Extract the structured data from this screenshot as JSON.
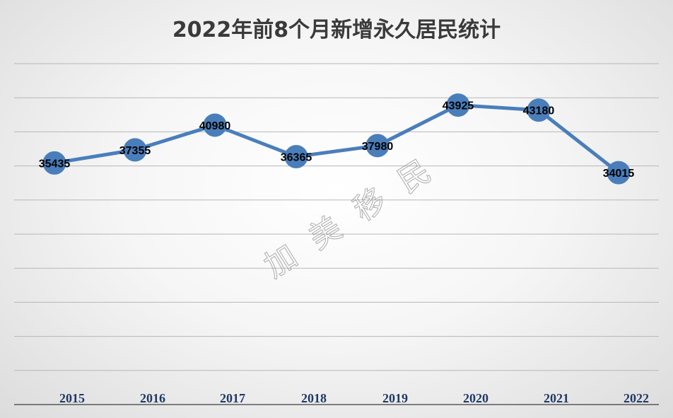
{
  "chart_data": {
    "type": "line",
    "title": "2022年前8个月新增永久居民统计",
    "categories": [
      "2015",
      "2016",
      "2017",
      "2018",
      "2019",
      "2020",
      "2021",
      "2022"
    ],
    "series": [
      {
        "values": [
          35435,
          37355,
          40980,
          36365,
          37980,
          43925,
          43180,
          34015
        ]
      }
    ],
    "data_labels": [
      "35435",
      "37355",
      "40980",
      "36365",
      "37980",
      "43925",
      "43180",
      "34015"
    ],
    "ylim": [
      0,
      50000
    ],
    "y_gridline_step": 5000,
    "grid": true,
    "legend": "none",
    "line_color": "#4a7ebb",
    "tick_label_color": "#1f3864"
  },
  "watermark": [
    "加",
    "美",
    "移",
    "民"
  ]
}
